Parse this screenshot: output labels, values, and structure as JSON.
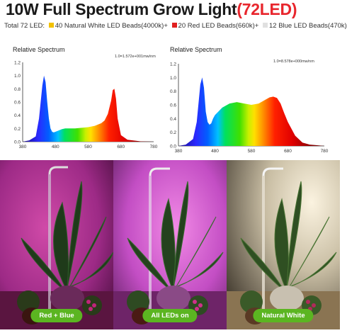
{
  "title": {
    "main": "10W Full Spectrum Grow Light",
    "accent": "(72LED)"
  },
  "led_summary": {
    "prefix": "Total 72 LED:",
    "items": [
      {
        "label": "40 Natural White LED Beads(4000k)+",
        "color": "#f2c100"
      },
      {
        "label": "20 Red LED Beads(660k)+",
        "color": "#e02020"
      },
      {
        "label": "12 Blue LED Beads(470k)",
        "color": "#e0e0e0"
      }
    ]
  },
  "chart_data": [
    {
      "type": "area",
      "title": "Relative Spectrum",
      "annotation": "1.0=1.572e+001mw/nm",
      "xlim": [
        380,
        780
      ],
      "ylim": [
        0,
        1.2
      ],
      "x_ticks": [
        380,
        480,
        580,
        680,
        780
      ],
      "y_ticks": [
        "0.0",
        "0.2",
        "0.4",
        "0.6",
        "0.8",
        "1.0",
        "1.2"
      ],
      "x": [
        380,
        400,
        420,
        430,
        440,
        445,
        450,
        455,
        460,
        465,
        470,
        475,
        480,
        490,
        500,
        510,
        520,
        540,
        560,
        580,
        600,
        620,
        630,
        640,
        650,
        655,
        660,
        665,
        670,
        680,
        700,
        740,
        780
      ],
      "y": [
        0,
        0.02,
        0.08,
        0.35,
        0.85,
        1.0,
        0.9,
        0.6,
        0.35,
        0.2,
        0.15,
        0.14,
        0.15,
        0.17,
        0.19,
        0.2,
        0.2,
        0.2,
        0.21,
        0.22,
        0.24,
        0.28,
        0.32,
        0.42,
        0.62,
        0.78,
        0.8,
        0.65,
        0.35,
        0.1,
        0.03,
        0.005,
        0
      ]
    },
    {
      "type": "area",
      "title": "Relative Spectrum",
      "annotation": "1.0=8.578e+000mw/nm",
      "xlim": [
        380,
        780
      ],
      "ylim": [
        0,
        1.2
      ],
      "x_ticks": [
        380,
        480,
        580,
        680,
        780
      ],
      "y_ticks": [
        "0.0",
        "0.2",
        "0.4",
        "0.6",
        "0.8",
        "1.0",
        "1.2"
      ],
      "x": [
        380,
        400,
        420,
        430,
        440,
        445,
        450,
        455,
        460,
        465,
        470,
        475,
        480,
        500,
        510,
        520,
        540,
        560,
        580,
        600,
        620,
        630,
        640,
        650,
        660,
        670,
        680,
        700,
        720,
        740,
        760,
        780
      ],
      "y": [
        0,
        0.02,
        0.1,
        0.35,
        0.9,
        1.0,
        0.85,
        0.5,
        0.35,
        0.31,
        0.33,
        0.4,
        0.45,
        0.56,
        0.59,
        0.62,
        0.64,
        0.62,
        0.6,
        0.62,
        0.68,
        0.71,
        0.72,
        0.7,
        0.62,
        0.48,
        0.35,
        0.15,
        0.05,
        0.02,
        0.01,
        0
      ]
    }
  ],
  "photos": [
    {
      "label": "Red + Blue"
    },
    {
      "label": "All LEDs on"
    },
    {
      "label": "Natural White"
    }
  ]
}
